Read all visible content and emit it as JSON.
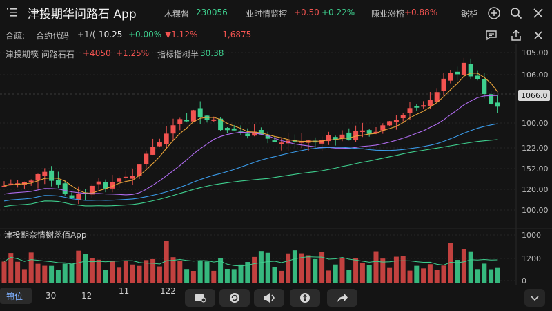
{
  "header": {
    "app_title": "津投期华问路石 App",
    "items": [
      {
        "label": "木粿督",
        "value": "230056"
      },
      {
        "label": "业时情监控",
        "value": "+0.50",
        "pct": "+0.22%"
      },
      {
        "label": "陳业涨榕",
        "pct": "+0.88%"
      },
      {
        "label": "锯栌"
      }
    ],
    "icons": [
      "menu-icon",
      "add-icon",
      "search-icon",
      "close-icon"
    ]
  },
  "subbar": {
    "label": "合疏:",
    "code_label": "合约代码",
    "code_value": "+1/(",
    "price": "10.25",
    "change_pct": "+0.00%",
    "change2": "▼1.12%",
    "change3": "-1,6875",
    "icons": [
      "comment-icon",
      "share-icon",
      "close-icon"
    ]
  },
  "chart_info": {
    "name": "津投期筷 问路石石",
    "change": "+4050",
    "change_pct": "+1.25%",
    "indicator_label": "指标指树半",
    "indicator_value": "30.38"
  },
  "chart_data": {
    "type": "candlestick",
    "price_axis_labels": [
      "105.00",
      "106.00",
      "100.00",
      "122.00",
      "152.00",
      "120.00",
      "100.00"
    ],
    "current_price_label": "1066.0",
    "volume_axis_labels": [
      "1000",
      "1200",
      "0"
    ],
    "colors": {
      "up": "#f25350",
      "down": "#3ecf8e",
      "ma5": "#e8a33a",
      "ma10": "#b06cf0",
      "ma20": "#3a9ae8",
      "ma60": "#3ecf8e"
    }
  },
  "volume_title": "津投期奈情榭蕊佰App",
  "bottombar": {
    "intervals": [
      "锦位",
      "30",
      "12",
      "11",
      "122"
    ],
    "tools": [
      "camera-icon",
      "refresh-icon",
      "sound-icon",
      "info-icon",
      "forward-icon"
    ],
    "collapse_icon": "chevron-down-icon"
  }
}
